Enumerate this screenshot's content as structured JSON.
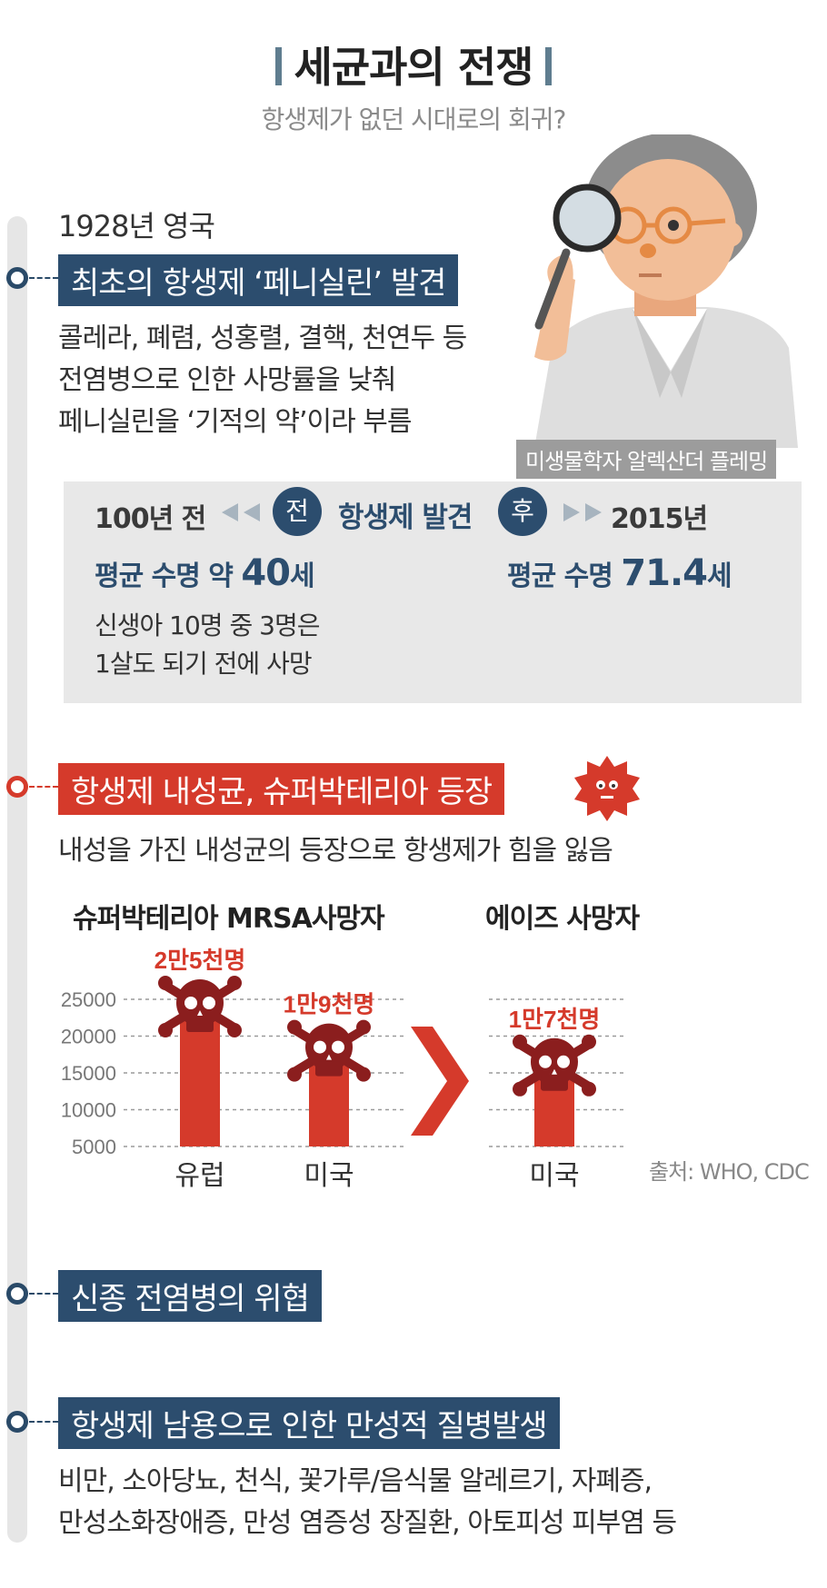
{
  "header": {
    "title": "세균과의 전쟁",
    "subtitle": "항생제가 없던 시대로의 회귀?"
  },
  "section1": {
    "year_place": "1928년 영국",
    "label": "최초의 항생제 ‘페니실린’ 발견",
    "lines": [
      "콜레라, 폐렴, 성홍렬, 결핵, 천연두 등",
      "전염병으로 인한 사망률을 낮춰",
      "페니실린을 ‘기적의 약’이라 부름"
    ],
    "caption": "미생물학자 알렉산더 플레밍"
  },
  "compare": {
    "before_label": "100년 전",
    "before_badge": "전",
    "center": "항생제 발견",
    "after_badge": "후",
    "after_label": "2015년",
    "before_life_prefix": "평균 수명 약 ",
    "before_life_value": "40",
    "before_life_unit": "세",
    "after_life_prefix": "평균 수명 ",
    "after_life_value": "71.4",
    "after_life_unit": "세",
    "note_lines": [
      "신생아 10명 중 3명은",
      "1살도 되기 전에 사망"
    ]
  },
  "section2": {
    "label": "항생제 내성균, 슈퍼박테리아 등장",
    "text": "내성을 가진 내성균의 등장으로 항생제가  힘을 잃음"
  },
  "chart_data": [
    {
      "type": "bar",
      "title": "슈퍼박테리아 MRSA사망자",
      "categories": [
        "유럽",
        "미국"
      ],
      "values": [
        25000,
        19000
      ],
      "data_labels": [
        "2만5천명",
        "1만9천명"
      ],
      "yticks": [
        25000,
        20000,
        15000,
        10000,
        5000
      ],
      "ylim": [
        5000,
        25000
      ],
      "grid": true,
      "color": "#d53a2b"
    },
    {
      "type": "bar",
      "title": "에이즈 사망자",
      "categories": [
        "미국"
      ],
      "values": [
        17000
      ],
      "data_labels": [
        "1만7천명"
      ],
      "ylim": [
        5000,
        25000
      ],
      "grid": true,
      "color": "#d53a2b"
    }
  ],
  "source": "출처: WHO, CDC",
  "section3": {
    "label": "신종 전염병의 위협"
  },
  "section4": {
    "label": "항생제 남용으로 인한 만성적 질병발생",
    "lines": [
      "비만, 소아당뇨, 천식, 꽃가루/음식물 알레르기, 자폐증,",
      "만성소화장애증, 만성 염증성 장질환, 아토피성 피부염 등"
    ]
  },
  "colors": {
    "navy": "#2c4d6e",
    "red": "#d53a2b",
    "skull": "#8b1e1e",
    "gray_box": "#e8e8e8"
  }
}
